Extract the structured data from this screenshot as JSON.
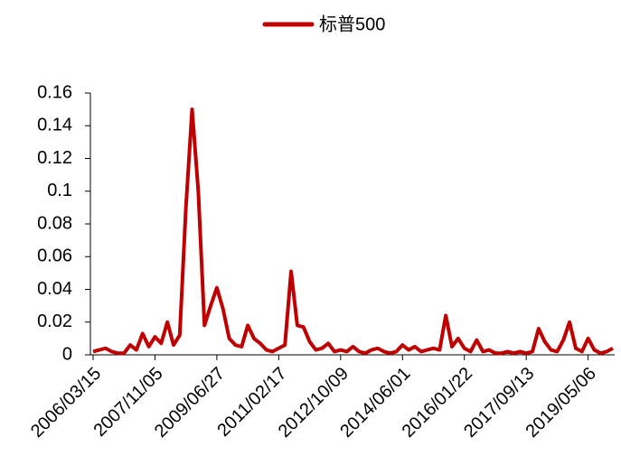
{
  "chart_data": {
    "type": "line",
    "categories": [
      "2006/03/15",
      null,
      null,
      null,
      null,
      null,
      null,
      null,
      null,
      null,
      "2007/11/05",
      null,
      null,
      null,
      null,
      null,
      null,
      null,
      null,
      null,
      "2009/06/27",
      null,
      null,
      null,
      null,
      null,
      null,
      null,
      null,
      null,
      "2011/02/17",
      null,
      null,
      null,
      null,
      null,
      null,
      null,
      null,
      null,
      "2012/10/09",
      null,
      null,
      null,
      null,
      null,
      null,
      null,
      null,
      null,
      "2014/06/01",
      null,
      null,
      null,
      null,
      null,
      null,
      null,
      null,
      null,
      "2016/01/22",
      null,
      null,
      null,
      null,
      null,
      null,
      null,
      null,
      null,
      "2017/09/13",
      null,
      null,
      null,
      null,
      null,
      null,
      null,
      null,
      null,
      "2019/05/06",
      null,
      null,
      null,
      null
    ],
    "series": [
      {
        "name": "标普500",
        "color": "#c00000",
        "values": [
          0.002,
          0.003,
          0.004,
          0.002,
          0.001,
          0.001,
          0.006,
          0.003,
          0.013,
          0.005,
          0.011,
          0.007,
          0.02,
          0.006,
          0.012,
          0.09,
          0.15,
          0.1,
          0.018,
          0.03,
          0.041,
          0.028,
          0.01,
          0.006,
          0.005,
          0.018,
          0.01,
          0.007,
          0.003,
          0.002,
          0.004,
          0.006,
          0.051,
          0.018,
          0.017,
          0.008,
          0.003,
          0.004,
          0.007,
          0.002,
          0.003,
          0.002,
          0.005,
          0.002,
          0.001,
          0.003,
          0.004,
          0.002,
          0.001,
          0.002,
          0.006,
          0.003,
          0.005,
          0.002,
          0.003,
          0.004,
          0.003,
          0.024,
          0.005,
          0.01,
          0.004,
          0.002,
          0.009,
          0.002,
          0.003,
          0.001,
          0.001,
          0.002,
          0.001,
          0.002,
          0.001,
          0.002,
          0.016,
          0.008,
          0.003,
          0.002,
          0.009,
          0.02,
          0.004,
          0.002,
          0.01,
          0.003,
          0.001,
          0.002,
          0.004
        ]
      }
    ],
    "ylim": [
      0,
      0.16
    ],
    "yticks": [
      0,
      0.02,
      0.04,
      0.06,
      0.08,
      0.1,
      0.12,
      0.14,
      0.16
    ],
    "legend": "top"
  }
}
